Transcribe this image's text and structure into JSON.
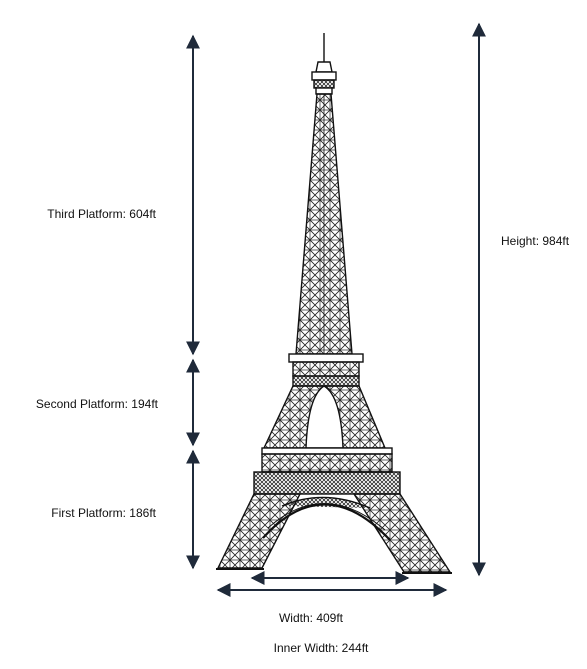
{
  "labels": {
    "third_platform": "Third Platform: 604ft",
    "second_platform": "Second Platform: 194ft",
    "first_platform": "First Platform: 186ft",
    "height": "Height: 984ft",
    "width": "Width: 409ft",
    "inner_width": "Inner Width: 244ft"
  },
  "colors": {
    "arrow": "#1f2a3a",
    "ink": "#111111"
  }
}
